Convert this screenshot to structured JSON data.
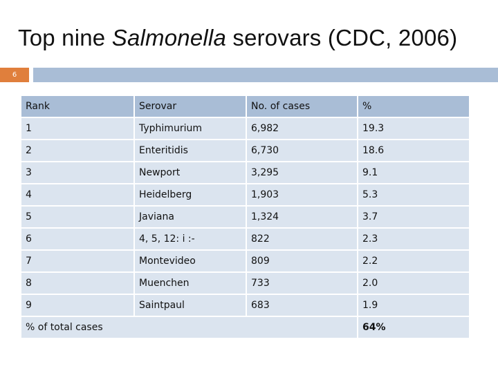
{
  "slide": {
    "title_prefix": "Top nine ",
    "title_italic": "Salmonella",
    "title_suffix": " serovars (CDC, 2006)",
    "slide_number": "6"
  },
  "table": {
    "headers": [
      "Rank",
      "Serovar",
      "No. of cases",
      "%"
    ],
    "rows": [
      [
        "1",
        "Typhimurium",
        "6,982",
        "19.3"
      ],
      [
        "2",
        "Enteritidis",
        "6,730",
        "18.6"
      ],
      [
        "3",
        "Newport",
        "3,295",
        "9.1"
      ],
      [
        "4",
        "Heidelberg",
        "1,903",
        "5.3"
      ],
      [
        "5",
        "Javiana",
        "1,324",
        "3.7"
      ],
      [
        "6",
        "4, 5, 12: i :-",
        "822",
        "2.3"
      ],
      [
        "7",
        "Montevideo",
        "809",
        "2.2"
      ],
      [
        "8",
        "Muenchen",
        "733",
        "2.0"
      ],
      [
        "9",
        "Saintpaul",
        "683",
        "1.9"
      ]
    ],
    "total_label": "% of total cases",
    "total_value": "64%"
  },
  "colors": {
    "accent": "#e07f3c",
    "header_fill": "#a9bdd6",
    "row_fill": "#dbe4ef"
  }
}
